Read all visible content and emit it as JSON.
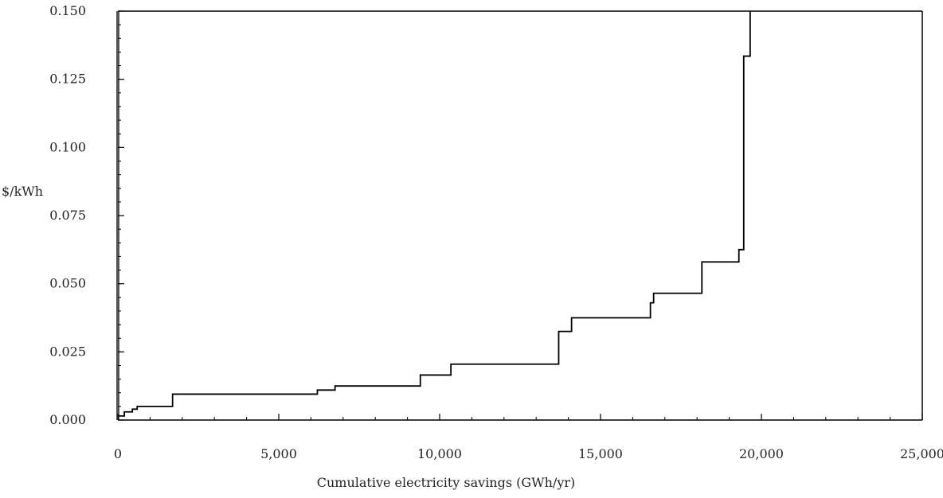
{
  "chart_data": {
    "type": "line",
    "title": "",
    "xlabel": "Cumulative electricity savings (GWh/yr)",
    "ylabel": "$/kWh",
    "xlim": [
      0,
      25000
    ],
    "ylim": [
      0,
      0.15
    ],
    "x_ticks": [
      0,
      5000,
      10000,
      15000,
      20000,
      25000
    ],
    "x_tick_labels": [
      "0",
      "5,000",
      "10,000",
      "15,000",
      "20,000",
      "25,000"
    ],
    "y_ticks": [
      0,
      0.025,
      0.05,
      0.075,
      0.1,
      0.125,
      0.15
    ],
    "y_tick_labels": [
      "0.000",
      "0.025",
      "0.050",
      "0.075",
      "0.100",
      "0.125",
      "0.150"
    ],
    "grid": false,
    "legend": "none",
    "line_color": "#000000",
    "series": [
      {
        "step": "post",
        "x": [
          0,
          200,
          450,
          600,
          1700,
          6200,
          6750,
          9400,
          10350,
          13700,
          14100,
          16550,
          16650,
          18150,
          19300,
          19450,
          19650
        ],
        "y": [
          0.0015,
          0.003,
          0.004,
          0.005,
          0.0095,
          0.011,
          0.0125,
          0.0165,
          0.0205,
          0.0325,
          0.0375,
          0.043,
          0.0465,
          0.058,
          0.0625,
          0.1335,
          0.15
        ]
      }
    ]
  }
}
